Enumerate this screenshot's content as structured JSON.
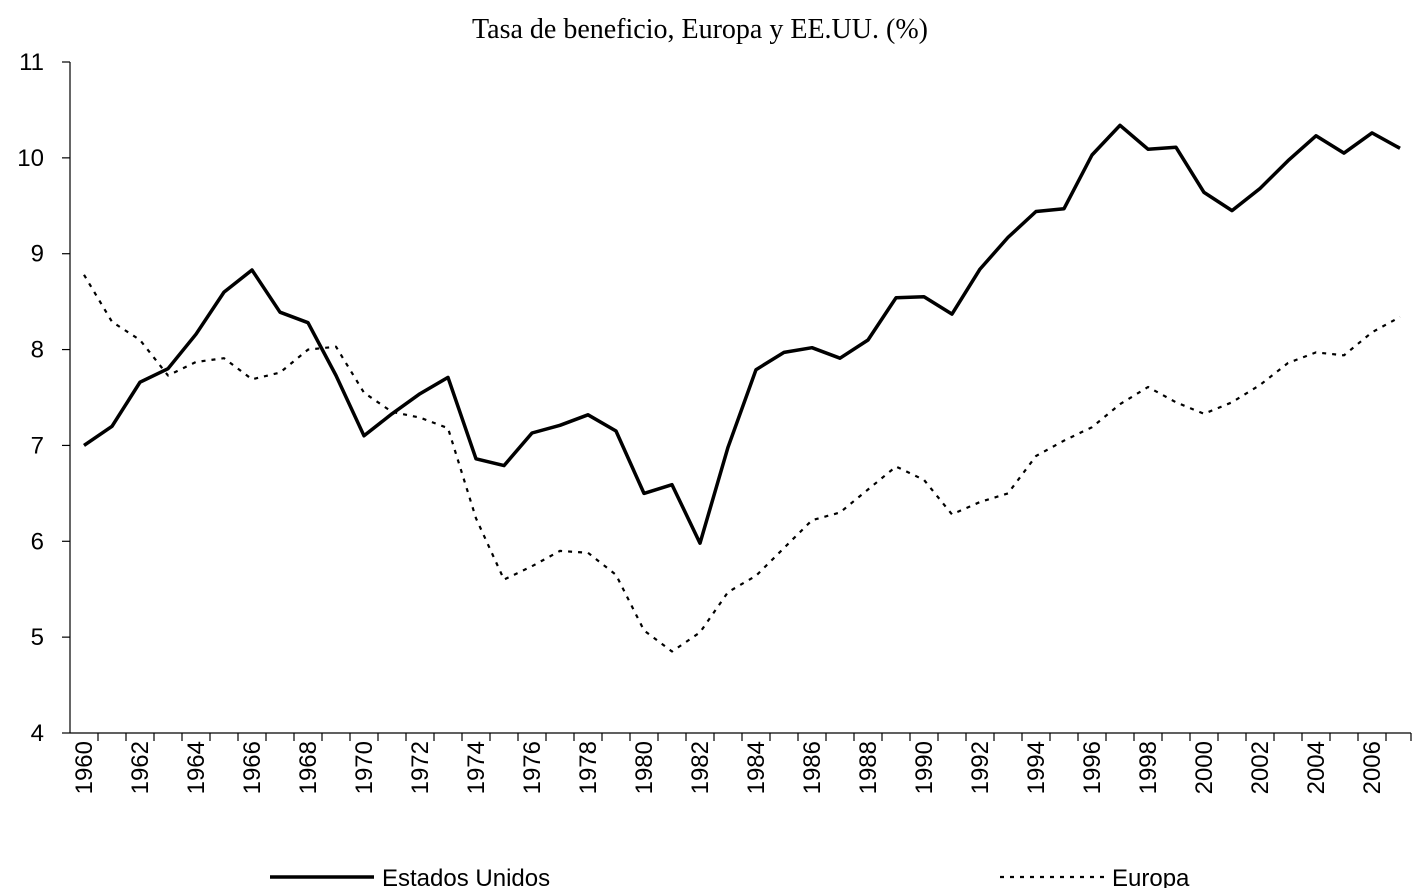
{
  "chart_data": {
    "type": "line",
    "title": "Tasa de beneficio, Europa y EE.UU. (%)",
    "categories": [
      "1960",
      null,
      "1962",
      null,
      "1964",
      null,
      "1966",
      null,
      "1968",
      null,
      "1970",
      null,
      "1972",
      null,
      "1974",
      null,
      "1976",
      null,
      "1978",
      null,
      "1980",
      null,
      "1982",
      null,
      "1984",
      null,
      "1986",
      null,
      "1988",
      null,
      "1990",
      null,
      "1992",
      null,
      "1994",
      null,
      "1996",
      null,
      "1998",
      null,
      "2000",
      null,
      "2002",
      null,
      "2004",
      null,
      "2006",
      null
    ],
    "series": [
      {
        "name": "Estados Unidos",
        "color": "#000000",
        "dash": "solid",
        "values": [
          7.0,
          7.2,
          7.66,
          7.8,
          8.16,
          8.6,
          8.83,
          8.39,
          8.28,
          7.73,
          7.1,
          7.33,
          7.54,
          7.71,
          6.86,
          6.79,
          7.13,
          7.21,
          7.32,
          7.15,
          6.5,
          6.59,
          5.98,
          6.98,
          7.79,
          7.97,
          8.02,
          7.91,
          8.1,
          8.54,
          8.55,
          8.37,
          8.84,
          9.17,
          9.44,
          9.47,
          10.03,
          10.34,
          10.09,
          10.11,
          9.64,
          9.45,
          9.68,
          9.97,
          10.23,
          10.05,
          10.26,
          10.1
        ]
      },
      {
        "name": "Europa",
        "color": "#000000",
        "dash": "dotted",
        "values": [
          8.78,
          8.29,
          8.1,
          7.73,
          7.87,
          7.91,
          7.69,
          7.76,
          8.0,
          8.03,
          7.55,
          7.35,
          7.29,
          7.18,
          6.24,
          5.6,
          5.74,
          5.9,
          5.88,
          5.65,
          5.07,
          4.85,
          5.05,
          5.47,
          5.64,
          5.93,
          6.22,
          6.3,
          6.54,
          6.78,
          6.64,
          6.28,
          6.41,
          6.5,
          6.89,
          7.05,
          7.19,
          7.43,
          7.61,
          7.45,
          7.33,
          7.45,
          7.63,
          7.86,
          7.97,
          7.94,
          8.18,
          8.34
        ]
      }
    ],
    "ylim": [
      4,
      11
    ],
    "yticks": [
      4,
      5,
      6,
      7,
      8,
      9,
      10,
      11
    ],
    "grid": false,
    "legend": "bottom"
  }
}
